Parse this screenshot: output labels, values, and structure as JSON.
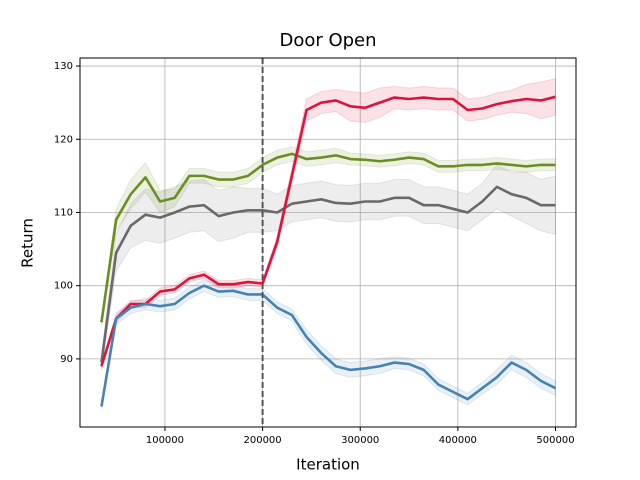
{
  "chart_data": {
    "type": "line",
    "title": "Door Open",
    "x_label": "Iteration",
    "y_label": "Return",
    "xlim": [
      13000,
      521000
    ],
    "ylim": [
      80.7,
      131.1
    ],
    "xticks": [
      100000,
      200000,
      300000,
      400000,
      500000
    ],
    "yticks": [
      90,
      100,
      110,
      120,
      130
    ],
    "grid": true,
    "vline": 200000,
    "x": [
      35000,
      50000,
      65000,
      80000,
      95000,
      110000,
      125000,
      140000,
      155000,
      170000,
      185000,
      200000,
      215000,
      230000,
      245000,
      260000,
      275000,
      290000,
      305000,
      320000,
      335000,
      350000,
      365000,
      380000,
      395000,
      410000,
      425000,
      440000,
      455000,
      470000,
      485000,
      500000
    ],
    "series": [
      {
        "color": "#6b8e23",
        "values": [
          95,
          109,
          112.5,
          114.8,
          111.5,
          112,
          115,
          115,
          114.5,
          114.5,
          115,
          116.5,
          117.5,
          118,
          117.3,
          117.5,
          117.8,
          117.3,
          117.2,
          117,
          117.2,
          117.5,
          117.3,
          116.3,
          116.3,
          116.5,
          116.5,
          116.7,
          116.5,
          116.3,
          116.5,
          116.5
        ],
        "spread": [
          0.5,
          1.5,
          2,
          2,
          1.5,
          1.2,
          1,
          1,
          1,
          1,
          1,
          1,
          1,
          1,
          1,
          1,
          1,
          0.8,
          0.8,
          0.8,
          0.8,
          0.8,
          0.8,
          0.8,
          0.8,
          0.8,
          0.8,
          0.8,
          0.8,
          0.8,
          0.8,
          0.8
        ]
      },
      {
        "color": "#696969",
        "values": [
          89.5,
          104.5,
          108.2,
          109.7,
          109.3,
          110,
          110.8,
          111,
          109.5,
          110,
          110.3,
          110.3,
          110,
          111.2,
          111.5,
          111.8,
          111.3,
          111.2,
          111.5,
          111.5,
          112,
          112,
          111,
          111,
          110.5,
          110,
          111.5,
          113.5,
          112.5,
          112,
          111,
          111
        ],
        "spread": [
          1,
          2.5,
          3,
          3.5,
          3.5,
          3.5,
          3.5,
          3.5,
          3.5,
          3.5,
          3,
          3,
          2.5,
          2.5,
          2.5,
          2.5,
          2.5,
          2.5,
          2.5,
          2.5,
          2.5,
          2.5,
          2.5,
          2.5,
          2.5,
          2.5,
          2.5,
          3,
          3,
          3.5,
          3.5,
          4
        ]
      },
      {
        "color": "#dc143c",
        "values": [
          89,
          95.5,
          97.5,
          97.5,
          99.2,
          99.5,
          101,
          101.5,
          100.2,
          100.2,
          100.5,
          100.3,
          106,
          115,
          124,
          125,
          125.3,
          124.5,
          124.3,
          125,
          125.7,
          125.5,
          125.7,
          125.5,
          125.5,
          124,
          124.2,
          124.8,
          125.2,
          125.5,
          125.3,
          125.8
        ],
        "spread": [
          0.3,
          0.5,
          0.5,
          0.5,
          0.5,
          0.5,
          0.5,
          0.5,
          0.5,
          0.5,
          0.5,
          0.5,
          0.8,
          1,
          1.5,
          1.5,
          1.5,
          2,
          2,
          2,
          1.5,
          1.5,
          1.5,
          1.5,
          1.5,
          1.5,
          1.5,
          1.5,
          1.5,
          2,
          2.5,
          2.5
        ]
      },
      {
        "color": "#4682b4",
        "values": [
          83.5,
          95.5,
          97,
          97.5,
          97.2,
          97.5,
          99,
          100,
          99.2,
          99.3,
          98.8,
          98.8,
          97,
          96,
          93,
          90.8,
          89,
          88.5,
          88.7,
          89,
          89.5,
          89.3,
          88.5,
          86.5,
          85.5,
          84.5,
          86,
          87.5,
          89.5,
          88.5,
          87,
          86
        ],
        "spread": [
          0.3,
          0.8,
          0.8,
          0.8,
          0.8,
          0.8,
          0.8,
          0.8,
          0.8,
          0.8,
          0.8,
          0.8,
          0.8,
          0.8,
          1,
          1,
          1,
          1,
          1,
          1,
          0.8,
          0.8,
          0.8,
          0.8,
          0.8,
          0.8,
          0.8,
          1,
          1,
          1,
          1,
          1
        ]
      }
    ]
  }
}
